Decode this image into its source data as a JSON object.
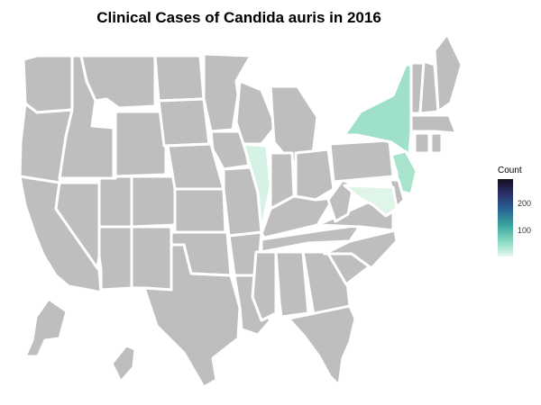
{
  "chart": {
    "title": "Clinical Cases of Candida auris in 2016",
    "legend_title": "Count",
    "legend_ticks": [
      "200",
      "100"
    ],
    "no_data_color": "#bebebe",
    "border_color": "#ffffff",
    "color_scale": [
      "#e7f8ef",
      "#8fdcc4",
      "#3aa7a0",
      "#2a5f94",
      "#2a2f66",
      "#140c1f"
    ]
  },
  "chart_data": {
    "type": "choropleth",
    "title": "Clinical Cases of Candida auris in 2016",
    "legend": "Count",
    "states_with_cases": [
      {
        "state": "New York",
        "color": "#9fe0c8"
      },
      {
        "state": "New Jersey",
        "color": "#a8e3cc"
      },
      {
        "state": "Illinois",
        "color": "#d6f2e4"
      },
      {
        "state": "Maryland",
        "color": "#def5e8"
      }
    ],
    "scale_range": [
      0,
      300
    ]
  }
}
